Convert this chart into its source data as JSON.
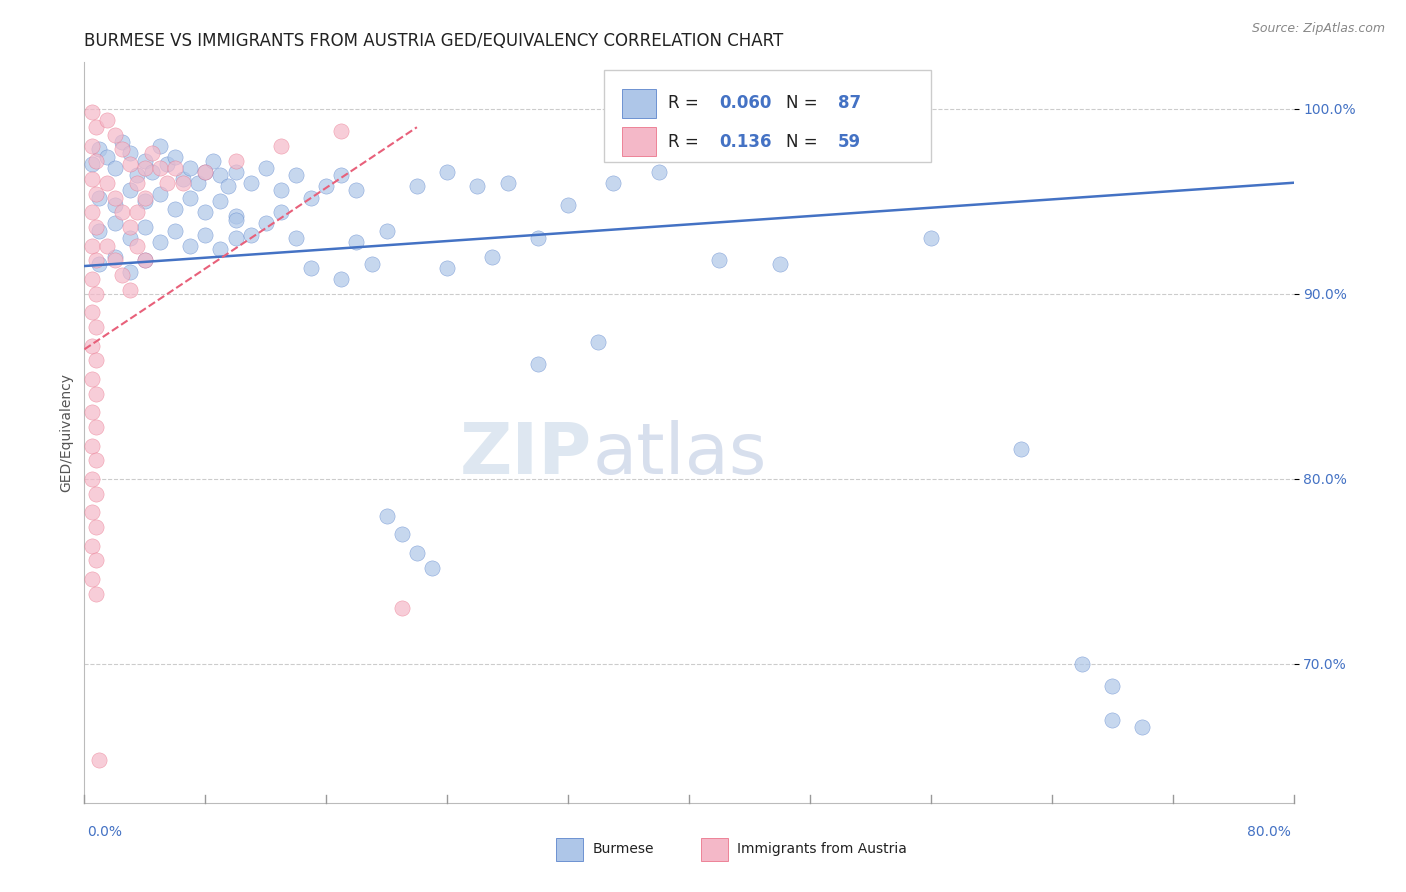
{
  "title": "BURMESE VS IMMIGRANTS FROM AUSTRIA GED/EQUIVALENCY CORRELATION CHART",
  "source": "Source: ZipAtlas.com",
  "ylabel": "GED/Equivalency",
  "xlim": [
    0.0,
    0.8
  ],
  "ylim": [
    0.625,
    1.025
  ],
  "blue_color": "#aec6e8",
  "pink_color": "#f4b8c8",
  "blue_line_color": "#4472c4",
  "pink_line_color": "#e8607a",
  "R_blue": 0.06,
  "N_blue": 87,
  "R_pink": 0.136,
  "N_pink": 59,
  "legend_label_blue": "Burmese",
  "legend_label_pink": "Immigrants from Austria",
  "blue_trend": [
    0.0,
    0.915,
    0.8,
    0.96
  ],
  "pink_trend": [
    0.0,
    0.87,
    0.22,
    0.99
  ],
  "blue_scatter": [
    [
      0.005,
      0.97
    ],
    [
      0.01,
      0.978
    ],
    [
      0.015,
      0.974
    ],
    [
      0.02,
      0.968
    ],
    [
      0.025,
      0.982
    ],
    [
      0.03,
      0.976
    ],
    [
      0.035,
      0.964
    ],
    [
      0.04,
      0.972
    ],
    [
      0.045,
      0.966
    ],
    [
      0.05,
      0.98
    ],
    [
      0.055,
      0.97
    ],
    [
      0.06,
      0.974
    ],
    [
      0.065,
      0.962
    ],
    [
      0.07,
      0.968
    ],
    [
      0.075,
      0.96
    ],
    [
      0.08,
      0.966
    ],
    [
      0.085,
      0.972
    ],
    [
      0.09,
      0.964
    ],
    [
      0.095,
      0.958
    ],
    [
      0.1,
      0.966
    ],
    [
      0.01,
      0.952
    ],
    [
      0.02,
      0.948
    ],
    [
      0.03,
      0.956
    ],
    [
      0.04,
      0.95
    ],
    [
      0.05,
      0.954
    ],
    [
      0.06,
      0.946
    ],
    [
      0.07,
      0.952
    ],
    [
      0.08,
      0.944
    ],
    [
      0.09,
      0.95
    ],
    [
      0.1,
      0.942
    ],
    [
      0.01,
      0.934
    ],
    [
      0.02,
      0.938
    ],
    [
      0.03,
      0.93
    ],
    [
      0.04,
      0.936
    ],
    [
      0.05,
      0.928
    ],
    [
      0.06,
      0.934
    ],
    [
      0.07,
      0.926
    ],
    [
      0.08,
      0.932
    ],
    [
      0.09,
      0.924
    ],
    [
      0.1,
      0.93
    ],
    [
      0.01,
      0.916
    ],
    [
      0.02,
      0.92
    ],
    [
      0.03,
      0.912
    ],
    [
      0.04,
      0.918
    ],
    [
      0.11,
      0.96
    ],
    [
      0.12,
      0.968
    ],
    [
      0.13,
      0.956
    ],
    [
      0.14,
      0.964
    ],
    [
      0.15,
      0.952
    ],
    [
      0.16,
      0.958
    ],
    [
      0.17,
      0.964
    ],
    [
      0.18,
      0.956
    ],
    [
      0.1,
      0.94
    ],
    [
      0.11,
      0.932
    ],
    [
      0.12,
      0.938
    ],
    [
      0.13,
      0.944
    ],
    [
      0.14,
      0.93
    ],
    [
      0.18,
      0.928
    ],
    [
      0.2,
      0.934
    ],
    [
      0.15,
      0.914
    ],
    [
      0.17,
      0.908
    ],
    [
      0.19,
      0.916
    ],
    [
      0.22,
      0.958
    ],
    [
      0.24,
      0.966
    ],
    [
      0.26,
      0.958
    ],
    [
      0.28,
      0.96
    ],
    [
      0.3,
      0.93
    ],
    [
      0.32,
      0.948
    ],
    [
      0.24,
      0.914
    ],
    [
      0.27,
      0.92
    ],
    [
      0.35,
      0.96
    ],
    [
      0.38,
      0.966
    ],
    [
      0.3,
      0.862
    ],
    [
      0.34,
      0.874
    ],
    [
      0.42,
      0.918
    ],
    [
      0.46,
      0.916
    ],
    [
      0.56,
      0.93
    ],
    [
      0.62,
      0.816
    ],
    [
      0.66,
      0.7
    ],
    [
      0.68,
      0.688
    ],
    [
      0.68,
      0.67
    ],
    [
      0.7,
      0.666
    ],
    [
      0.2,
      0.78
    ],
    [
      0.21,
      0.77
    ],
    [
      0.22,
      0.76
    ],
    [
      0.23,
      0.752
    ]
  ],
  "pink_scatter": [
    [
      0.005,
      0.998
    ],
    [
      0.008,
      0.99
    ],
    [
      0.005,
      0.98
    ],
    [
      0.008,
      0.972
    ],
    [
      0.005,
      0.962
    ],
    [
      0.008,
      0.954
    ],
    [
      0.005,
      0.944
    ],
    [
      0.008,
      0.936
    ],
    [
      0.005,
      0.926
    ],
    [
      0.008,
      0.918
    ],
    [
      0.005,
      0.908
    ],
    [
      0.008,
      0.9
    ],
    [
      0.005,
      0.89
    ],
    [
      0.008,
      0.882
    ],
    [
      0.005,
      0.872
    ],
    [
      0.008,
      0.864
    ],
    [
      0.005,
      0.854
    ],
    [
      0.008,
      0.846
    ],
    [
      0.005,
      0.836
    ],
    [
      0.008,
      0.828
    ],
    [
      0.005,
      0.818
    ],
    [
      0.008,
      0.81
    ],
    [
      0.005,
      0.8
    ],
    [
      0.008,
      0.792
    ],
    [
      0.005,
      0.782
    ],
    [
      0.008,
      0.774
    ],
    [
      0.005,
      0.764
    ],
    [
      0.008,
      0.756
    ],
    [
      0.005,
      0.746
    ],
    [
      0.008,
      0.738
    ],
    [
      0.015,
      0.994
    ],
    [
      0.02,
      0.986
    ],
    [
      0.025,
      0.978
    ],
    [
      0.03,
      0.97
    ],
    [
      0.015,
      0.96
    ],
    [
      0.02,
      0.952
    ],
    [
      0.025,
      0.944
    ],
    [
      0.03,
      0.936
    ],
    [
      0.015,
      0.926
    ],
    [
      0.02,
      0.918
    ],
    [
      0.025,
      0.91
    ],
    [
      0.03,
      0.902
    ],
    [
      0.035,
      0.96
    ],
    [
      0.04,
      0.968
    ],
    [
      0.045,
      0.976
    ],
    [
      0.05,
      0.968
    ],
    [
      0.055,
      0.96
    ],
    [
      0.06,
      0.968
    ],
    [
      0.065,
      0.96
    ],
    [
      0.035,
      0.944
    ],
    [
      0.04,
      0.952
    ],
    [
      0.035,
      0.926
    ],
    [
      0.04,
      0.918
    ],
    [
      0.08,
      0.966
    ],
    [
      0.1,
      0.972
    ],
    [
      0.13,
      0.98
    ],
    [
      0.17,
      0.988
    ],
    [
      0.21,
      0.73
    ],
    [
      0.01,
      0.648
    ]
  ],
  "watermark_zip": "ZIP",
  "watermark_atlas": "atlas",
  "title_fontsize": 12,
  "axis_label_fontsize": 10,
  "tick_fontsize": 10,
  "legend_fontsize": 12
}
